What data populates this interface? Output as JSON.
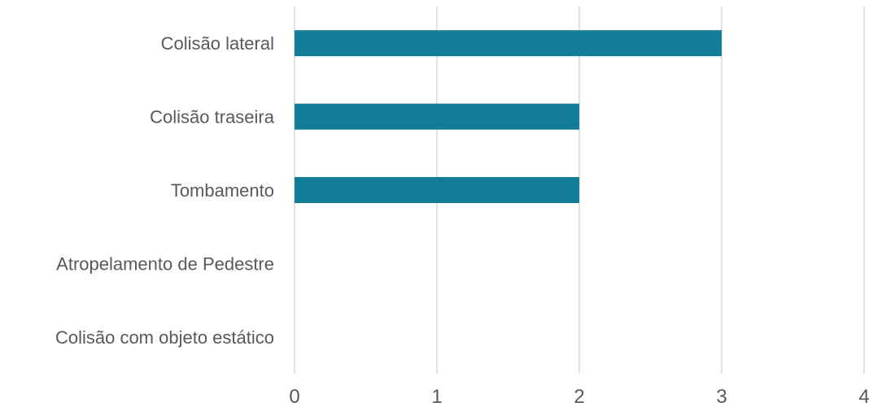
{
  "chart_data": {
    "type": "bar",
    "orientation": "horizontal",
    "title": "",
    "xlabel": "",
    "ylabel": "",
    "categories": [
      "Colisão lateral",
      "Colisão traseira",
      "Tombamento",
      "Atropelamento de Pedestre",
      "Colisão com objeto estático"
    ],
    "values": [
      3,
      2,
      2,
      0,
      0
    ],
    "xlim": [
      0,
      4
    ],
    "xticks": [
      "0",
      "1",
      "2",
      "3",
      "4"
    ],
    "grid": "vertical",
    "legend": "none",
    "colors": {
      "bar": "#127d96",
      "grid": "#d9d9d9",
      "text": "#595959"
    }
  }
}
